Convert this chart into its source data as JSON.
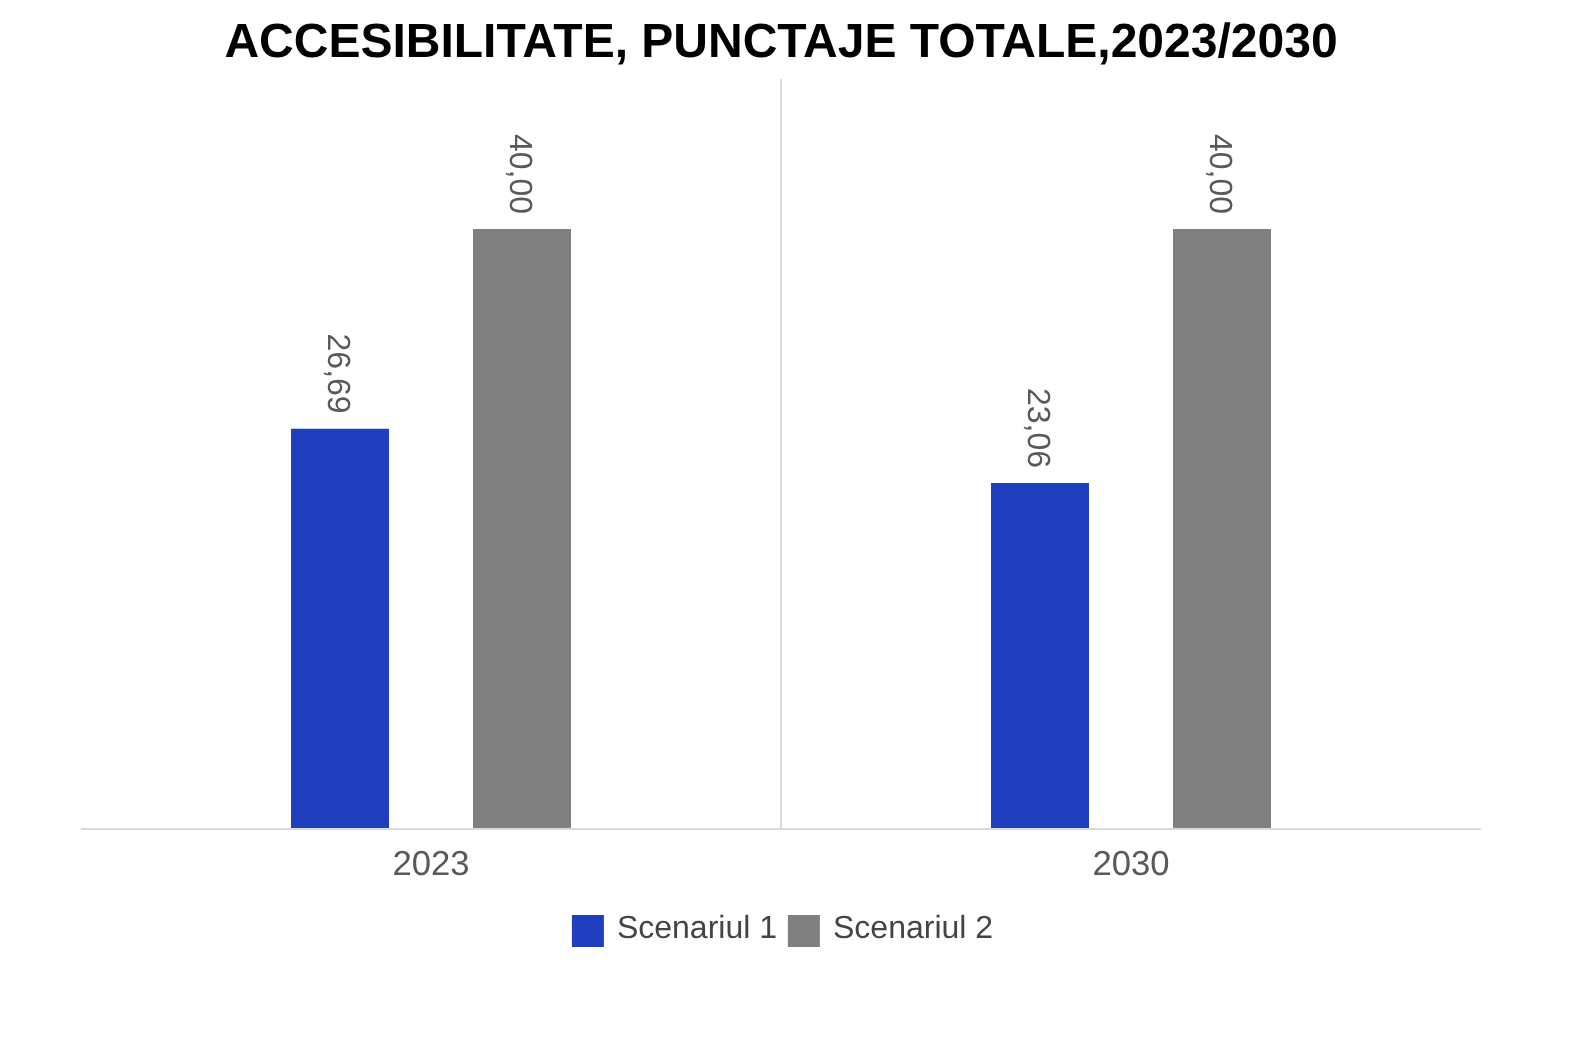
{
  "chart_data": {
    "type": "bar",
    "title": "ACCESIBILITATE, PUNCTAJE TOTALE,2023/2030",
    "categories": [
      "2023",
      "2030"
    ],
    "series": [
      {
        "name": "Scenariul 1",
        "color": "#1f3fbf",
        "values": [
          26.69,
          23.06
        ],
        "value_labels": [
          "26,69",
          "23,06"
        ]
      },
      {
        "name": "Scenariul 2",
        "color": "#808080",
        "values": [
          40.0,
          40.0
        ],
        "value_labels": [
          "40,00",
          "40,00"
        ]
      }
    ],
    "legend": "bottom",
    "grid": "x"
  }
}
